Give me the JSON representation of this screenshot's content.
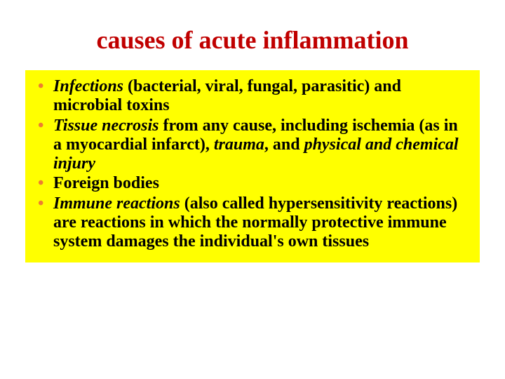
{
  "title": {
    "text": "causes of acute inflammation",
    "color": "#c00000",
    "fontsize": 36
  },
  "content": {
    "background_color": "#ffff00",
    "text_color": "#000000",
    "bullet_color": "#ed7d31",
    "fontsize": 24,
    "line_height": 1.12,
    "items": [
      {
        "b1_i": "Infections",
        "t1": " (bacterial, viral, fungal, parasitic) and microbial toxins"
      },
      {
        "b1_i": "Tissue necrosis",
        "t1": " from any cause, including ",
        "b2": "ischemia",
        "t2": " (as in a myocardial infarct), ",
        "b3_i": "trauma",
        "t3": ", and ",
        "b4_i": "physical and chemical injury"
      },
      {
        "b1": "Foreign bodies"
      },
      {
        "b1_i": "Immune reactions",
        "t1": " (also called hypersensitivity reactions) are reactions in which the normally protective immune system damages the individual's own tissues"
      }
    ]
  }
}
